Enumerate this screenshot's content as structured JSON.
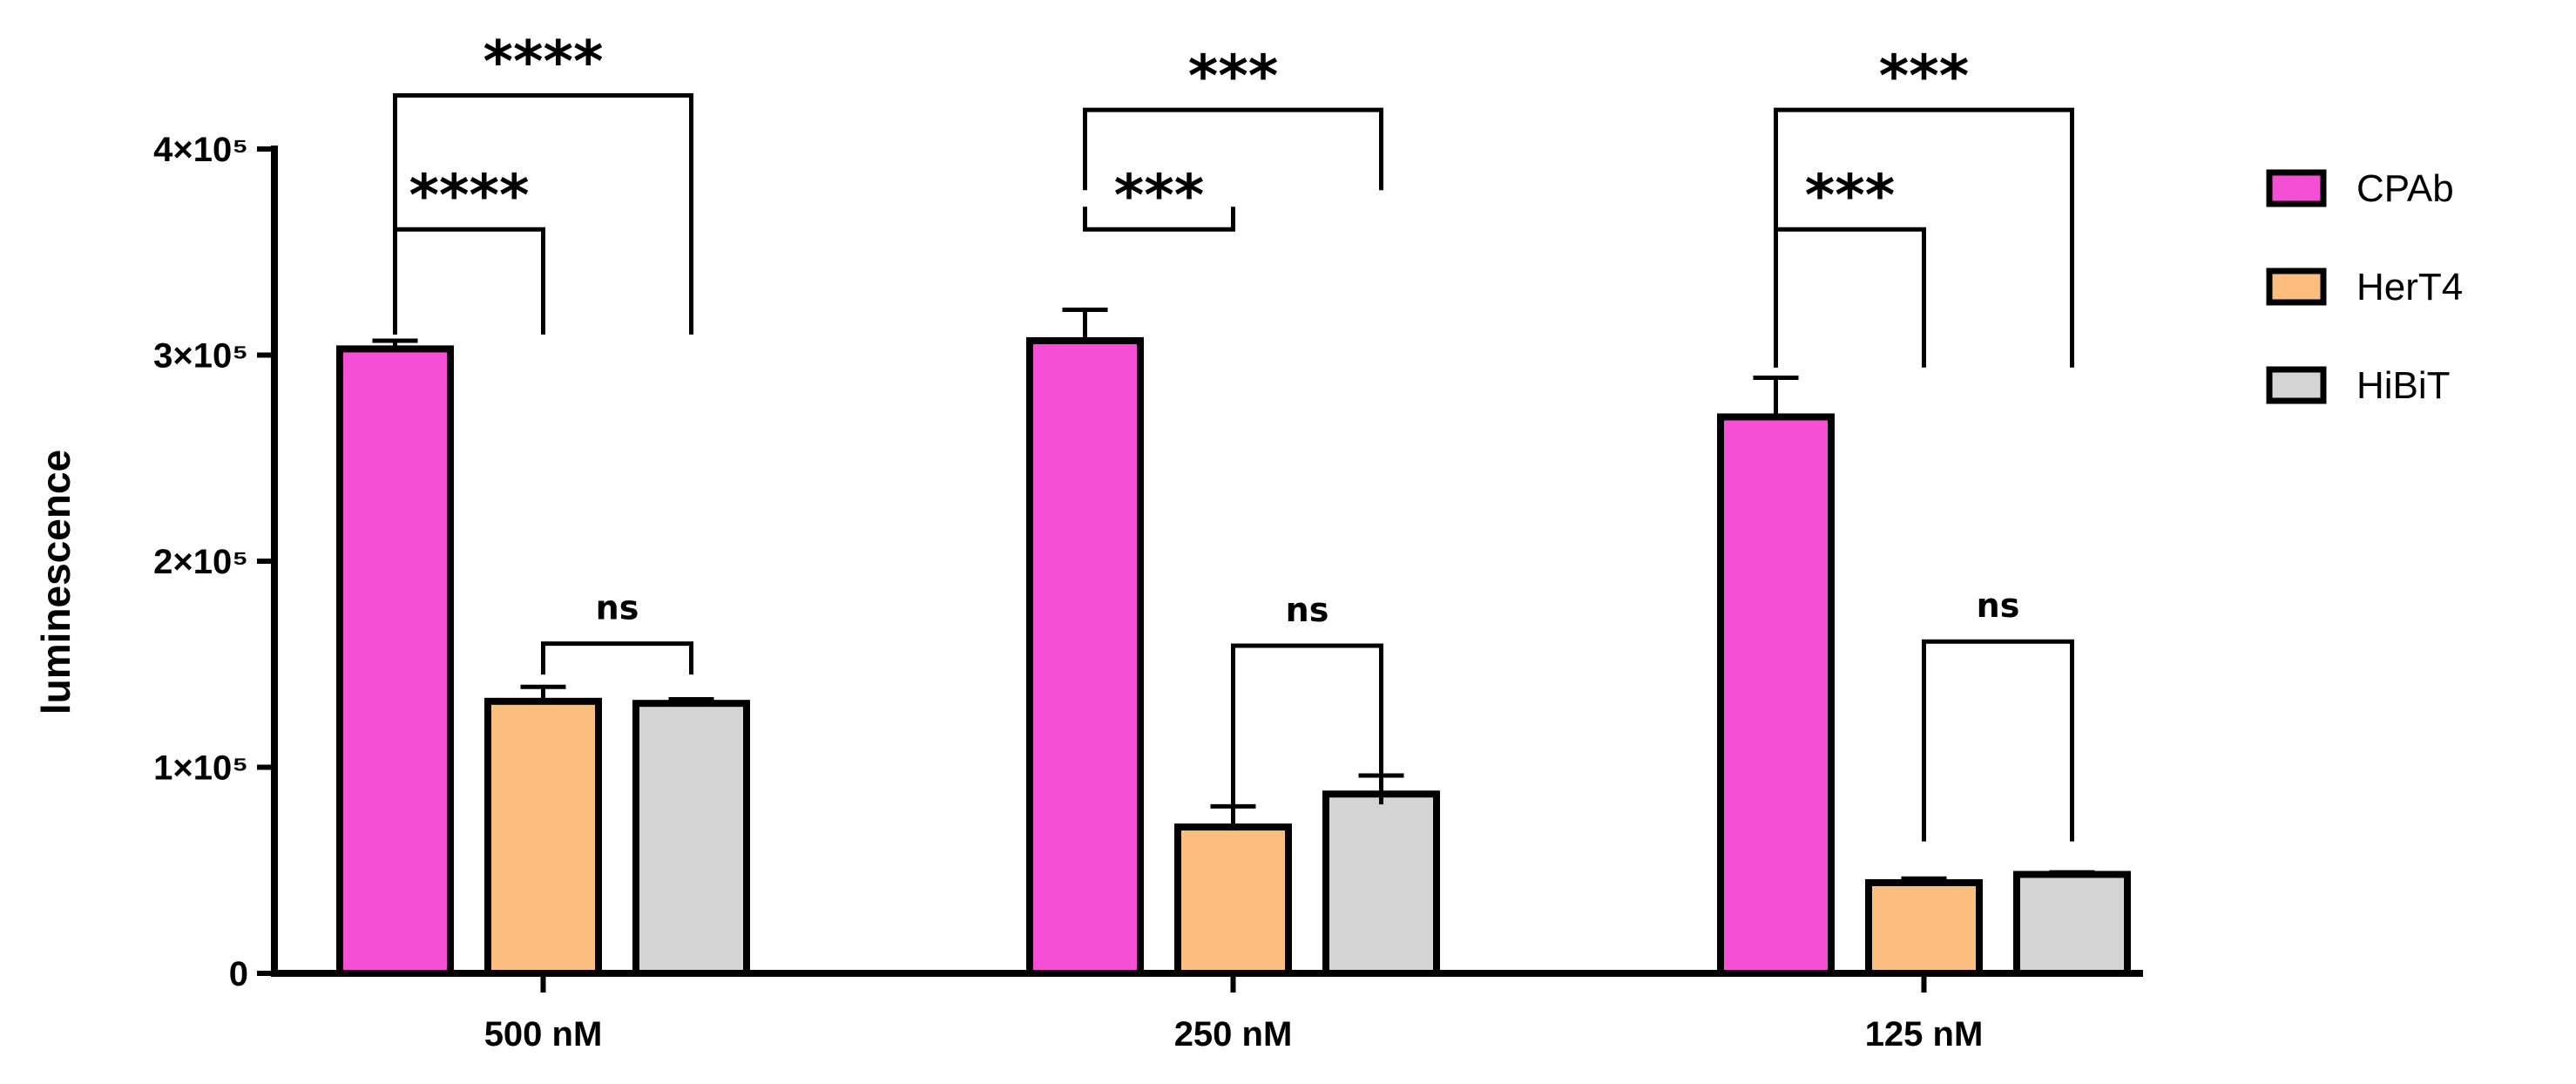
{
  "chart_data": {
    "type": "bar",
    "title": "",
    "xlabel": "",
    "ylabel": "luminescence",
    "ylim": [
      0,
      400000
    ],
    "yticks": [
      {
        "value": 0,
        "label": "0"
      },
      {
        "value": 100000,
        "label": "1×10⁵"
      },
      {
        "value": 200000,
        "label": "2×10⁵"
      },
      {
        "value": 300000,
        "label": "3×10⁵"
      },
      {
        "value": 400000,
        "label": "4×10⁵"
      }
    ],
    "categories": [
      "500 nM",
      "250 nM",
      "125 nM"
    ],
    "series": [
      {
        "name": "CPAb",
        "color": "#f54fd6",
        "values": [
          303000,
          307000,
          270000
        ],
        "errors": [
          4000,
          15000,
          19000
        ]
      },
      {
        "name": "HerT4",
        "color": "#fbbe7f",
        "values": [
          132000,
          71000,
          44000
        ],
        "errors": [
          7000,
          10000,
          2000
        ]
      },
      {
        "name": "HiBiT",
        "color": "#d4d4d4",
        "values": [
          131000,
          87000,
          48000
        ],
        "errors": [
          2000,
          9000,
          1000
        ]
      }
    ],
    "legend_position": "right",
    "significance": [
      {
        "group": 0,
        "from": 0,
        "to": 2,
        "label": "****",
        "start_level": 310000,
        "top": 426000
      },
      {
        "group": 0,
        "from": 0,
        "to": 1,
        "label": "****",
        "start_level": 310000,
        "top": 361000
      },
      {
        "group": 0,
        "from": 1,
        "to": 2,
        "label": "ns",
        "start_level": 145000,
        "top": 160000
      },
      {
        "group": 1,
        "from": 0,
        "to": 2,
        "label": "***",
        "start_level": 380000,
        "top": 419000
      },
      {
        "group": 1,
        "from": 0,
        "to": 1,
        "label": "***",
        "start_level": 372000,
        "top": 361000
      },
      {
        "group": 1,
        "from": 1,
        "to": 2,
        "label": "ns",
        "start_level": 82000,
        "top": 159000
      },
      {
        "group": 2,
        "from": 0,
        "to": 2,
        "label": "***",
        "start_level": 294000,
        "top": 419000
      },
      {
        "group": 2,
        "from": 0,
        "to": 1,
        "label": "***",
        "start_level": 294000,
        "top": 361000
      },
      {
        "group": 2,
        "from": 1,
        "to": 2,
        "label": "ns",
        "start_level": 64000,
        "top": 161000
      }
    ]
  }
}
